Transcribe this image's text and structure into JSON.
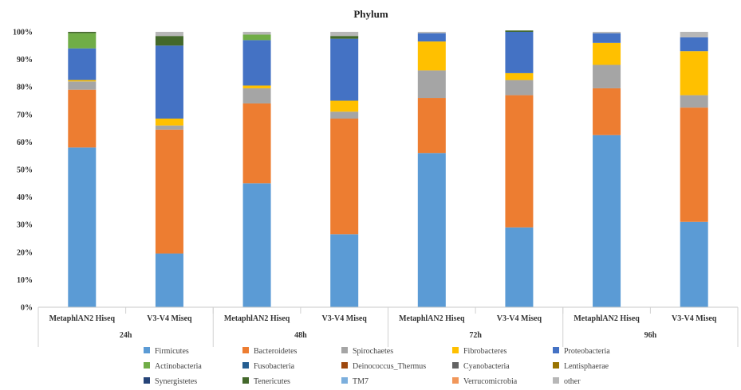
{
  "chart_data": {
    "type": "bar",
    "stacked": true,
    "normalized": true,
    "title": "Phylum",
    "ylim": [
      0,
      100
    ],
    "yticks": [
      "0%",
      "10%",
      "20%",
      "30%",
      "40%",
      "50%",
      "60%",
      "70%",
      "80%",
      "90%",
      "100%"
    ],
    "categories": [
      "MetaphlAN2 Hiseq",
      "V3-V4 Miseq",
      "MetaphlAN2 Hiseq",
      "V3-V4 Miseq",
      "MetaphlAN2 Hiseq",
      "V3-V4 Miseq",
      "MetaphlAN2 Hiseq",
      "V3-V4 Miseq"
    ],
    "groups": [
      "24h",
      "48h",
      "72h",
      "96h"
    ],
    "legend_position": "bottom",
    "grid": false,
    "series": [
      {
        "name": "Firmicutes",
        "color": "#5b9bd5",
        "values": [
          58,
          19.5,
          45,
          26.5,
          56,
          29,
          62.5,
          31
        ]
      },
      {
        "name": "Bacteroidetes",
        "color": "#ed7d31",
        "values": [
          21,
          45,
          29,
          42,
          20,
          48,
          17,
          41.5
        ]
      },
      {
        "name": "Spirochaetes",
        "color": "#a5a5a5",
        "values": [
          3,
          1.5,
          5.5,
          2.5,
          10,
          5.5,
          8.5,
          4.5
        ]
      },
      {
        "name": "Fibrobacteres",
        "color": "#ffc000",
        "values": [
          0.5,
          2.5,
          1,
          4,
          10.5,
          2.5,
          8,
          16
        ]
      },
      {
        "name": "Proteobacteria",
        "color": "#4472c4",
        "values": [
          11.5,
          26.5,
          16.5,
          22.5,
          3,
          15,
          3.5,
          5
        ]
      },
      {
        "name": "Actinobacteria",
        "color": "#70ad47",
        "values": [
          5.5,
          0,
          2,
          0,
          0,
          0,
          0,
          0
        ]
      },
      {
        "name": "Fusobacteria",
        "color": "#255e91",
        "values": [
          0,
          0,
          0,
          0,
          0,
          0,
          0,
          0
        ]
      },
      {
        "name": "Deinococcus_Thermus",
        "color": "#9e480e",
        "values": [
          0,
          0,
          0,
          0,
          0,
          0,
          0,
          0
        ]
      },
      {
        "name": "Cyanobacteria",
        "color": "#636363",
        "values": [
          0,
          0,
          0,
          0,
          0,
          0,
          0,
          0
        ]
      },
      {
        "name": "Lentisphaerae",
        "color": "#997300",
        "values": [
          0,
          0,
          0,
          0,
          0,
          0,
          0,
          0
        ]
      },
      {
        "name": "Synergistetes",
        "color": "#264478",
        "values": [
          0,
          0,
          0,
          0,
          0,
          0,
          0,
          0
        ]
      },
      {
        "name": "Tenericutes",
        "color": "#43682b",
        "values": [
          0.5,
          3.5,
          0,
          1,
          0,
          0.5,
          0,
          0
        ]
      },
      {
        "name": "TM7",
        "color": "#7cafdd",
        "values": [
          0,
          0,
          0,
          0,
          0,
          0,
          0,
          0
        ]
      },
      {
        "name": "Verrucomicrobia",
        "color": "#f1975a",
        "values": [
          0,
          0,
          0,
          0,
          0,
          0,
          0,
          0
        ]
      },
      {
        "name": "other",
        "color": "#b7b7b7",
        "values": [
          0,
          1.5,
          1,
          1.5,
          0.5,
          0,
          0.5,
          2
        ]
      }
    ]
  }
}
